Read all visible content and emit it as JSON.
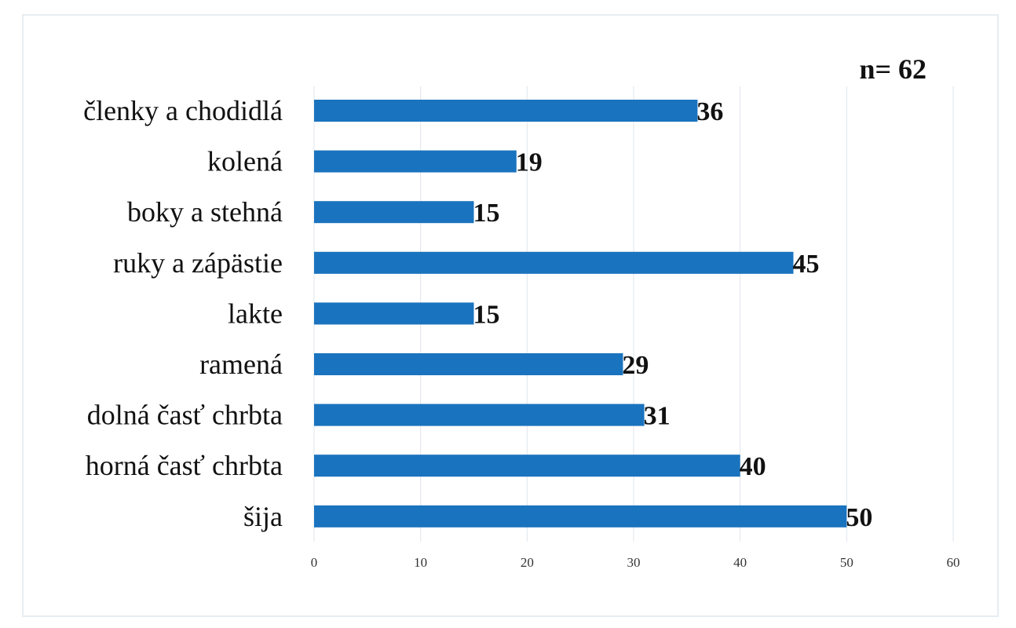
{
  "chart_data": {
    "type": "bar",
    "orientation": "horizontal",
    "annotation": "n= 62",
    "categories": [
      "členky a chodidlá",
      "kolená",
      "boky a stehná",
      "ruky a zápästie",
      "lakte",
      "ramená",
      "dolná časť chrbta",
      "horná časť chrbta",
      "šija"
    ],
    "values": [
      36,
      19,
      15,
      45,
      15,
      29,
      31,
      40,
      50
    ],
    "xlim": [
      0,
      60
    ],
    "xticks": [
      "0",
      "10",
      "20",
      "30",
      "40",
      "50",
      "60"
    ],
    "grid": true,
    "bar_color": "#1a73be",
    "title": "",
    "xlabel": "",
    "ylabel": ""
  }
}
